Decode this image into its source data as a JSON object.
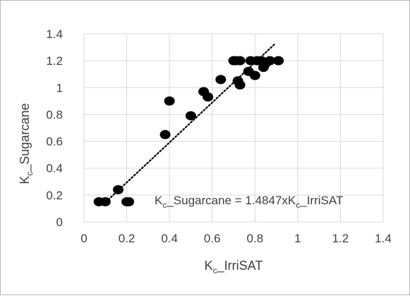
{
  "chart_data": {
    "type": "scatter",
    "title": "",
    "xlabel": {
      "main": "K",
      "sub": "c",
      "rest": "_IrriSAT"
    },
    "ylabel": {
      "main": "K",
      "sub": "c",
      "rest": "_Sugarcane"
    },
    "xlim": [
      0,
      1.4
    ],
    "ylim": [
      0,
      1.4
    ],
    "xticks": [
      0,
      0.2,
      0.4,
      0.6,
      0.8,
      1,
      1.2,
      1.4
    ],
    "xtick_labels": [
      "0",
      "0.2",
      "0.4",
      "0.6",
      "0.8",
      "1",
      "1.2",
      "1.4"
    ],
    "yticks": [
      0,
      0.2,
      0.4,
      0.6,
      0.8,
      1,
      1.2,
      1.4
    ],
    "ytick_labels": [
      "0",
      "0.2",
      "0.4",
      "0.6",
      "0.8",
      "1",
      "1.2",
      "1.4"
    ],
    "grid": true,
    "legend": "none",
    "marker_color": "#000000",
    "points": [
      {
        "x": 0.07,
        "y": 0.15
      },
      {
        "x": 0.1,
        "y": 0.15
      },
      {
        "x": 0.16,
        "y": 0.24
      },
      {
        "x": 0.2,
        "y": 0.15
      },
      {
        "x": 0.21,
        "y": 0.15
      },
      {
        "x": 0.38,
        "y": 0.65
      },
      {
        "x": 0.4,
        "y": 0.9
      },
      {
        "x": 0.5,
        "y": 0.79
      },
      {
        "x": 0.56,
        "y": 0.97
      },
      {
        "x": 0.58,
        "y": 0.93
      },
      {
        "x": 0.64,
        "y": 1.06
      },
      {
        "x": 0.7,
        "y": 1.2
      },
      {
        "x": 0.71,
        "y": 1.2
      },
      {
        "x": 0.73,
        "y": 1.2
      },
      {
        "x": 0.72,
        "y": 1.05
      },
      {
        "x": 0.73,
        "y": 1.02
      },
      {
        "x": 0.77,
        "y": 1.12
      },
      {
        "x": 0.78,
        "y": 1.2
      },
      {
        "x": 0.8,
        "y": 1.09
      },
      {
        "x": 0.81,
        "y": 1.2
      },
      {
        "x": 0.83,
        "y": 1.2
      },
      {
        "x": 0.84,
        "y": 1.15
      },
      {
        "x": 0.85,
        "y": 1.18
      },
      {
        "x": 0.87,
        "y": 1.2
      },
      {
        "x": 0.91,
        "y": 1.2
      }
    ],
    "trendline": {
      "style": "dotted",
      "color": "#000000",
      "x": [
        0.09,
        0.89
      ],
      "y": [
        0.13,
        1.32
      ],
      "equation": {
        "part1": "K",
        "sub1": "c",
        "part2": "_Sugarcane = 1.4847xK",
        "sub2": "c",
        "part3": "_IrriSAT"
      }
    }
  }
}
